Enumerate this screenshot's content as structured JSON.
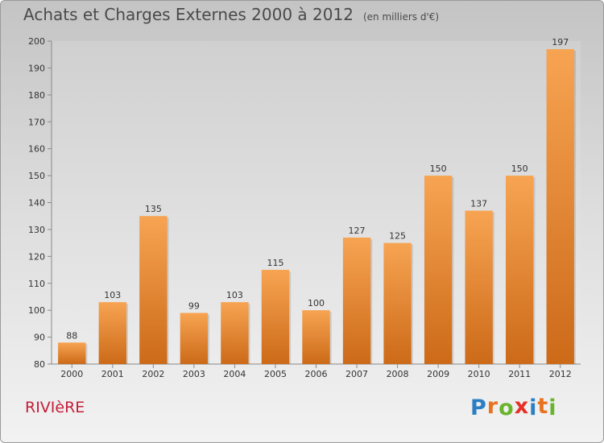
{
  "header": {
    "title": "Achats et Charges Externes 2000 à 2012",
    "unit": "(en milliers d'€)"
  },
  "chart_data": {
    "type": "bar",
    "categories": [
      "2000",
      "2001",
      "2002",
      "2003",
      "2004",
      "2005",
      "2006",
      "2007",
      "2008",
      "2009",
      "2010",
      "2011",
      "2012"
    ],
    "values": [
      88,
      103,
      135,
      99,
      103,
      115,
      100,
      127,
      125,
      150,
      137,
      150,
      197
    ],
    "ylim": [
      80,
      200
    ],
    "yticks": [
      80,
      90,
      100,
      110,
      120,
      130,
      140,
      150,
      160,
      170,
      180,
      190,
      200
    ],
    "grid": false,
    "bar_color": "#f0923c"
  },
  "footer": {
    "commune": "RIVIèRE",
    "logo": {
      "letters": [
        "P",
        "r",
        "o",
        "x",
        "i",
        "t",
        "i"
      ],
      "colors": [
        "#2a7fc4",
        "#e8731f",
        "#6ab42d",
        "#e63027",
        "#2a7fc4",
        "#e8731f",
        "#6ab42d"
      ]
    }
  }
}
